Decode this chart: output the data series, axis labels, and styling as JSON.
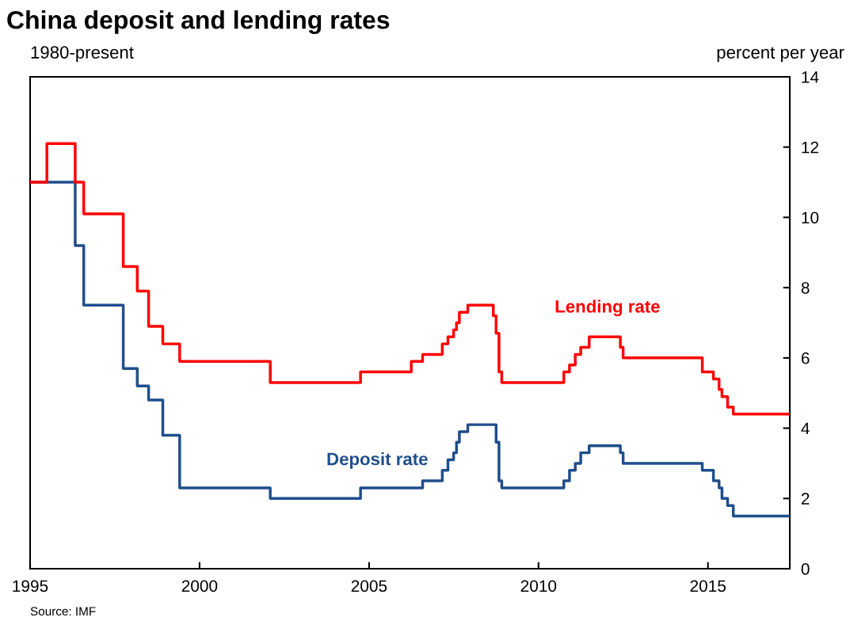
{
  "chart_data": {
    "type": "step",
    "title": "China deposit and lending rates",
    "subtitle": "1980-present",
    "ylabel": "percent per year",
    "annotations": [
      "Source: IMF"
    ],
    "series": [
      {
        "name": "Lending rate",
        "color": "#ff0000",
        "x": [
          "1995-01",
          "1995-07",
          "1996-05",
          "1996-08",
          "1997-10",
          "1998-03",
          "1998-07",
          "1998-12",
          "1999-06",
          "2002-02",
          "2004-10",
          "2006-04",
          "2006-08",
          "2007-03",
          "2007-05",
          "2007-07",
          "2007-08",
          "2007-09",
          "2007-12",
          "2008-09",
          "2008-10",
          "2008-11",
          "2008-12",
          "2010-10",
          "2010-12",
          "2011-02",
          "2011-04",
          "2011-07",
          "2012-06",
          "2012-07",
          "2014-11",
          "2015-03",
          "2015-05",
          "2015-06",
          "2015-08",
          "2015-10",
          "2017-06"
        ],
        "values": [
          11.0,
          12.1,
          11.0,
          10.1,
          8.6,
          7.9,
          6.9,
          6.4,
          5.9,
          5.3,
          5.6,
          5.9,
          6.1,
          6.4,
          6.6,
          6.8,
          7.0,
          7.3,
          7.5,
          7.2,
          6.7,
          5.6,
          5.3,
          5.6,
          5.8,
          6.1,
          6.3,
          6.6,
          6.3,
          6.0,
          5.6,
          5.4,
          5.1,
          4.9,
          4.6,
          4.4,
          4.4
        ]
      },
      {
        "name": "Deposit rate",
        "color": "#1f4e8c",
        "x": [
          "1995-01",
          "1996-05",
          "1996-08",
          "1997-10",
          "1998-03",
          "1998-07",
          "1998-12",
          "1999-06",
          "2002-02",
          "2004-10",
          "2006-08",
          "2007-03",
          "2007-05",
          "2007-07",
          "2007-08",
          "2007-09",
          "2007-12",
          "2008-10",
          "2008-11",
          "2008-12",
          "2010-10",
          "2010-12",
          "2011-02",
          "2011-04",
          "2011-07",
          "2012-06",
          "2012-07",
          "2014-11",
          "2015-03",
          "2015-05",
          "2015-06",
          "2015-08",
          "2015-10",
          "2017-06"
        ],
        "values": [
          11.0,
          9.2,
          7.5,
          5.7,
          5.2,
          4.8,
          3.8,
          2.3,
          2.0,
          2.3,
          2.5,
          2.8,
          3.1,
          3.3,
          3.6,
          3.9,
          4.1,
          3.6,
          2.5,
          2.3,
          2.5,
          2.8,
          3.0,
          3.3,
          3.5,
          3.3,
          3.0,
          2.8,
          2.5,
          2.3,
          2.0,
          1.8,
          1.5,
          1.5
        ]
      }
    ],
    "xlim": [
      "1995-01-01",
      "2017-06-01"
    ],
    "xticks": [
      "1995",
      "2000",
      "2005",
      "2010",
      "2015"
    ],
    "ylim": [
      0,
      14
    ],
    "yticks": [
      0,
      2,
      4,
      6,
      8,
      10,
      12,
      14
    ],
    "line_style": "solid",
    "marker": "none",
    "grid": false,
    "legend": false
  }
}
